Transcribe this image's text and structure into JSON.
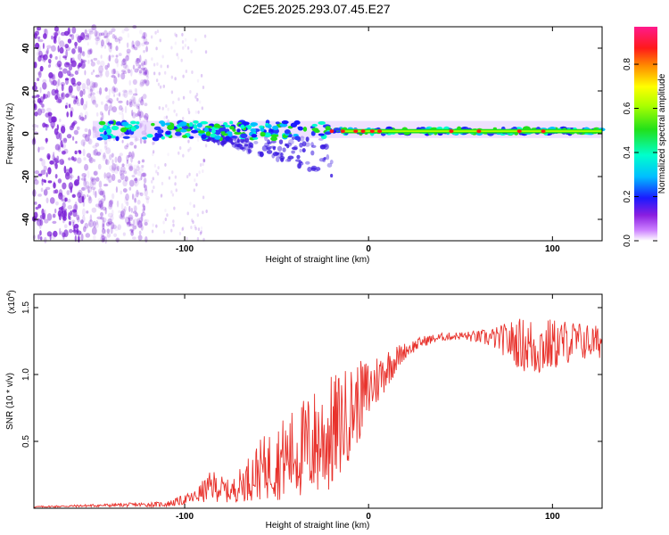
{
  "title": "C2E5.2025.293.07.45.E27",
  "chart_data": [
    {
      "type": "heatmap",
      "xlabel": "Height of straight line (km)",
      "ylabel": "Frequency (Hz)",
      "xlim": [
        -182,
        127
      ],
      "ylim": [
        -50,
        50
      ],
      "xticks": [
        -100,
        0,
        100
      ],
      "yticks": [
        -40,
        -20,
        0,
        20,
        40
      ],
      "colorbar": {
        "label": "Normalized spectral amplitude",
        "range": [
          0,
          0.97
        ],
        "ticks": [
          0.0,
          0.2,
          0.4,
          0.6,
          0.8
        ]
      },
      "features": {
        "noise_region_x": [
          -182,
          -120
        ],
        "signal_band_start_x": -150,
        "signal_band_center_hz": 2,
        "scatter_tail_hz_min": -20
      }
    },
    {
      "type": "line",
      "xlabel": "Height of straight line (km)",
      "ylabel": "SNR (10 * v/v)",
      "scale_label": "(x10",
      "scale_exp": "4",
      "xlim": [
        -182,
        127
      ],
      "ylim": [
        0,
        1.6
      ],
      "xticks": [
        -100,
        0,
        100
      ],
      "yticks": [
        0.5,
        1.0,
        1.5
      ],
      "ytick_labels": [
        "0.5",
        "1.0",
        "1.5"
      ],
      "series": [
        {
          "name": "SNR",
          "color": "#e8322c",
          "x_knots": [
            -182,
            -150,
            -110,
            -95,
            -85,
            -75,
            -60,
            -45,
            -30,
            -20,
            -10,
            0,
            10,
            20,
            30,
            40,
            50,
            60,
            70,
            80,
            90,
            100,
            110,
            127
          ],
          "y_knots": [
            0.01,
            0.02,
            0.03,
            0.08,
            0.17,
            0.12,
            0.28,
            0.38,
            0.48,
            0.55,
            0.72,
            0.88,
            1.05,
            1.18,
            1.25,
            1.28,
            1.29,
            1.28,
            1.27,
            1.24,
            1.2,
            1.22,
            1.25,
            1.24
          ],
          "noise_amplitude": [
            0.005,
            0.01,
            0.02,
            0.05,
            0.12,
            0.08,
            0.22,
            0.32,
            0.42,
            0.45,
            0.35,
            0.25,
            0.15,
            0.06,
            0.04,
            0.03,
            0.03,
            0.05,
            0.09,
            0.18,
            0.24,
            0.2,
            0.16,
            0.12
          ]
        }
      ]
    }
  ],
  "colors": {
    "signal_red": "#e8322c",
    "noise_purple": "#7a1fd6"
  }
}
